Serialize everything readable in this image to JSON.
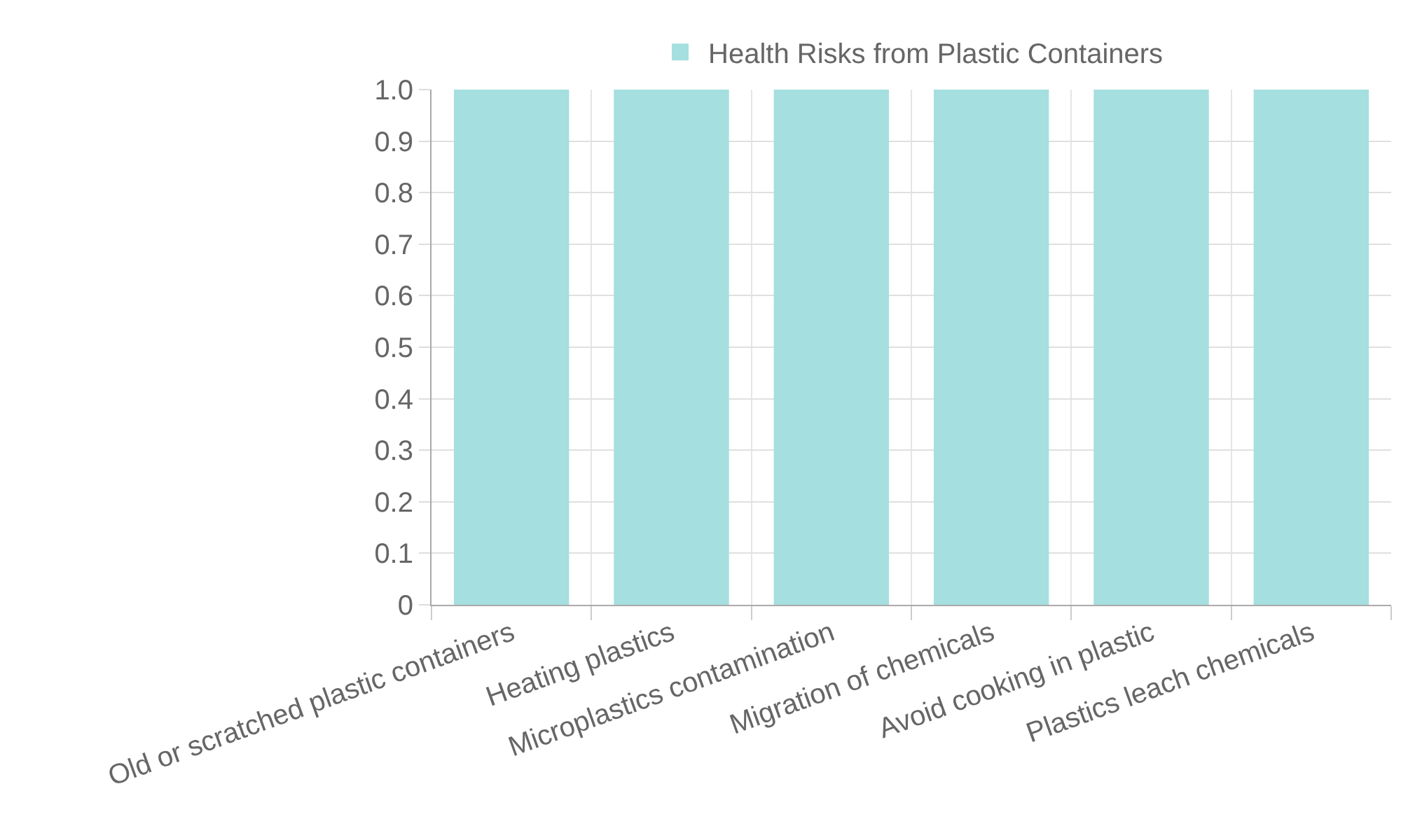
{
  "chart_data": {
    "type": "bar",
    "categories": [
      "Old or scratched plastic containers",
      "Heating plastics",
      "Microplastics contamination",
      "Migration of chemicals",
      "Avoid cooking in plastic",
      "Plastics leach chemicals"
    ],
    "series": [
      {
        "name": "Health Risks from Plastic Containers",
        "color": "#a5dfdf",
        "values": [
          1,
          1,
          1,
          1,
          1,
          1
        ]
      }
    ],
    "ylim": [
      0,
      1
    ],
    "yticks": [
      0,
      0.1,
      0.2,
      0.3,
      0.4,
      0.5,
      0.6,
      0.7,
      0.8,
      0.9,
      {
        "value": 1,
        "label": "1.0"
      }
    ],
    "grid": true,
    "legend": "top"
  }
}
